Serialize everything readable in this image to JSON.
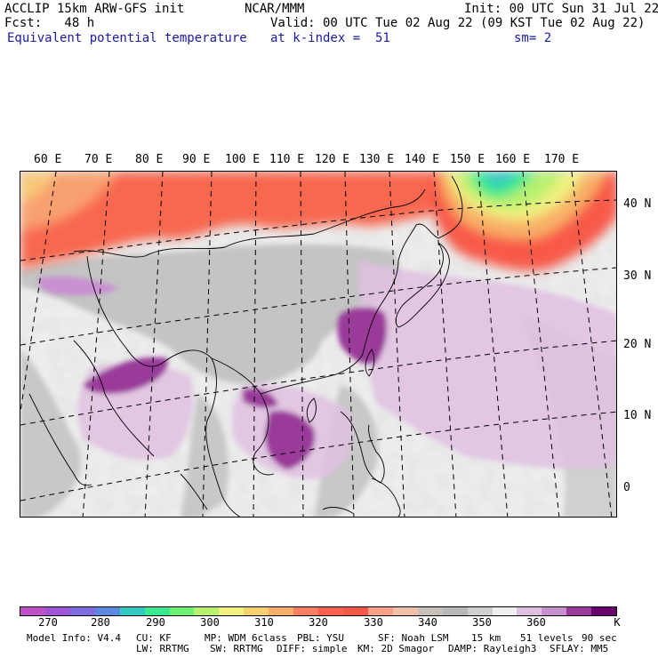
{
  "header": {
    "model_line": "ACCLIP 15km ARW-GFS init",
    "org": "NCAR/MMM",
    "init": "Init: 00 UTC Sun 31 Jul 22",
    "fcst": "Fcst:   48 h",
    "valid": "Valid: 00 UTC Tue 02 Aug 22 (09 KST Tue 02 Aug 22)",
    "field": "Equivalent potential temperature",
    "level": "at k-index =  51",
    "smooth": "sm= 2"
  },
  "map": {
    "lon_labels": [
      "60 E",
      "70 E",
      "80 E",
      "90 E",
      "100 E",
      "110 E",
      "120 E",
      "130 E",
      "140 E",
      "150 E",
      "160 E",
      "170 E"
    ],
    "lat_labels": [
      "40 N",
      "30 N",
      "20 N",
      "10 N",
      "0"
    ]
  },
  "colorbar": {
    "colors": [
      "#c050c8",
      "#9e55d8",
      "#7f6de0",
      "#5c88e0",
      "#35c8c0",
      "#3ae890",
      "#6ef070",
      "#b8f070",
      "#f0f080",
      "#f8d070",
      "#f8b068",
      "#f88060",
      "#f86050",
      "#f85848",
      "#f8a088",
      "#f0c0a8",
      "#c8c0b8",
      "#b8b8b8",
      "#d0d0d0",
      "#f0f0f0",
      "#e0c0e0",
      "#c890d0",
      "#9a3a9a",
      "#6a006a"
    ],
    "tick_labels": [
      "270",
      "280",
      "290",
      "300",
      "310",
      "320",
      "330",
      "340",
      "350",
      "360"
    ],
    "unit": "K"
  },
  "footer": {
    "line1": [
      "Model Info: V4.4",
      "CU: KF",
      "MP: WDM 6class",
      "PBL: YSU",
      "SF: Noah LSM",
      "15 km",
      "51 levels",
      "90 sec"
    ],
    "line2": [
      "LW: RRTMG",
      "SW: RRTMG",
      "DIFF: simple",
      "KM: 2D Smagor",
      "DAMP: Rayleigh3",
      "SFLAY: MM5"
    ]
  }
}
